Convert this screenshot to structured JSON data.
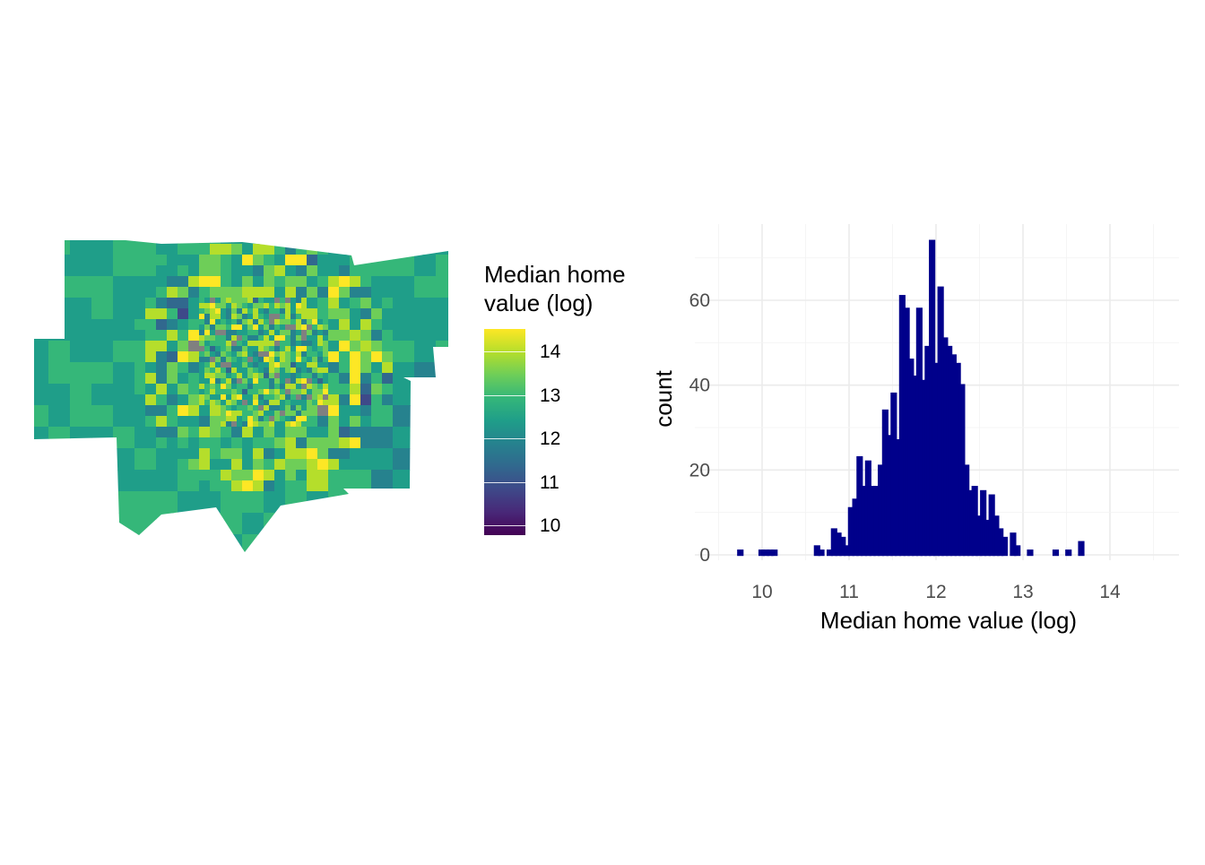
{
  "map": {
    "legend_title": "Median home\nvalue (log)",
    "legend_ticks": [
      "10",
      "11",
      "12",
      "13",
      "14"
    ],
    "palette": [
      "#440154",
      "#482878",
      "#3e4989",
      "#31688e",
      "#26828e",
      "#1f9e89",
      "#35b779",
      "#6ece58",
      "#b5de2b",
      "#fde725"
    ],
    "missing_color": "#808080"
  },
  "chart_data": {
    "type": "bar",
    "subtype": "histogram",
    "xlabel": "Median home value (log)",
    "ylabel": "count",
    "xlim": [
      9.7,
      14.55
    ],
    "ylim": [
      0,
      75
    ],
    "x_ticks": [
      10,
      11,
      12,
      13,
      14
    ],
    "y_ticks": [
      0,
      20,
      40,
      60
    ],
    "grid": true,
    "fill_color": "#00008b",
    "bins": {
      "start": 9.75,
      "width": 0.049,
      "counts": [
        1,
        0,
        0,
        0,
        0,
        1,
        1,
        1,
        1,
        0,
        0,
        0,
        0,
        0,
        0,
        0,
        0,
        0,
        2,
        1,
        0,
        1,
        6,
        5,
        4,
        2,
        11,
        13,
        23,
        16,
        22,
        16,
        16,
        21,
        34,
        28,
        38,
        27,
        61,
        58,
        46,
        42,
        58,
        41,
        49,
        74,
        45,
        63,
        51,
        49,
        47,
        45,
        40,
        21,
        15,
        16,
        9,
        15,
        8,
        14,
        9,
        6,
        4,
        0,
        5,
        2,
        0,
        0,
        1,
        0,
        0,
        0,
        0,
        0,
        1,
        0,
        0,
        1,
        0,
        0,
        3
      ]
    }
  }
}
